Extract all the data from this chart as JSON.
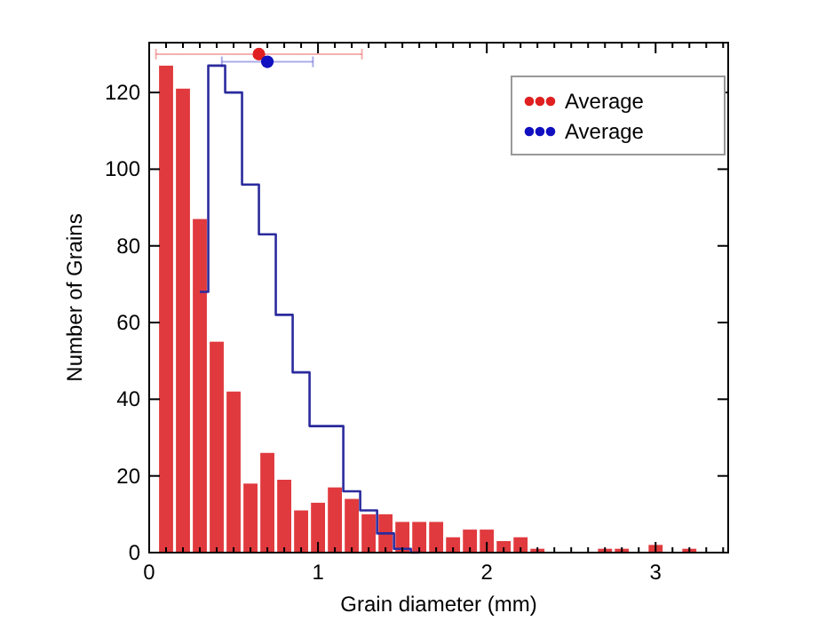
{
  "chart_data": {
    "type": "histogram",
    "xlabel": "Grain diameter (mm)",
    "ylabel": "Number of Grains",
    "bins": [
      0.05,
      0.15,
      0.25,
      0.35,
      0.45,
      0.55,
      0.65,
      0.75,
      0.85,
      0.95,
      1.05,
      1.15,
      1.25,
      1.35,
      1.45,
      1.55,
      1.65,
      1.75,
      1.85,
      1.95,
      2.05,
      2.15,
      2.25,
      2.35,
      2.45,
      2.55,
      2.65,
      2.75,
      2.85,
      2.95,
      3.05,
      3.15,
      3.25,
      3.35
    ],
    "values": [
      127,
      121,
      87,
      55,
      42,
      18,
      26,
      19,
      11,
      13,
      17,
      14,
      10,
      10,
      8,
      8,
      8,
      4,
      6,
      6,
      3,
      4,
      1,
      0,
      0,
      0,
      1,
      1,
      0,
      2,
      0,
      1,
      0
    ],
    "color": "#e03a3e",
    "series": [
      {
        "type": "step",
        "color": "#2b2b9e",
        "x": [
          0.3,
          0.4,
          0.5,
          0.6,
          0.7,
          0.8,
          0.9,
          1.0,
          1.1,
          1.2,
          1.3,
          1.4,
          1.5,
          1.6
        ],
        "values": [
          68,
          127,
          120,
          96,
          83,
          62,
          47,
          33,
          33,
          16,
          11,
          5,
          1,
          0
        ]
      },
      {
        "type": "scatter",
        "name": "Average",
        "marker": "circle",
        "color": "#e02020",
        "x": [
          0.65
        ],
        "values": [
          130
        ],
        "xerrors": [
          0.61
        ]
      },
      {
        "type": "scatter",
        "name": "Average",
        "marker": "circle",
        "color": "#1010c0",
        "x": [
          0.7
        ],
        "values": [
          128
        ],
        "xerrors": [
          0.27
        ]
      }
    ],
    "legend": "top right",
    "xlim": [
      0,
      3.43
    ],
    "ylim": [
      0,
      133
    ],
    "xticks": [
      0,
      {
        "value": 0.1,
        "label": null
      },
      {
        "value": 0.2,
        "label": null
      },
      {
        "value": 0.3,
        "label": null
      },
      {
        "value": 0.4,
        "label": null
      },
      {
        "value": 0.5,
        "label": null
      },
      {
        "value": 0.6,
        "label": null
      },
      {
        "value": 0.7,
        "label": null
      },
      {
        "value": 0.8,
        "label": null
      },
      {
        "value": 0.9,
        "label": null
      },
      1,
      {
        "value": 1.1,
        "label": null
      },
      {
        "value": 1.2,
        "label": null
      },
      {
        "value": 1.3,
        "label": null
      },
      {
        "value": 1.4,
        "label": null
      },
      {
        "value": 1.5,
        "label": null
      },
      {
        "value": 1.6,
        "label": null
      },
      {
        "value": 1.7,
        "label": null
      },
      {
        "value": 1.8,
        "label": null
      },
      {
        "value": 1.9,
        "label": null
      },
      2,
      {
        "value": 2.1,
        "label": null
      },
      {
        "value": 2.2,
        "label": null
      },
      {
        "value": 2.3,
        "label": null
      },
      {
        "value": 2.4,
        "label": null
      },
      {
        "value": 2.5,
        "label": null
      },
      {
        "value": 2.6,
        "label": null
      },
      {
        "value": 2.7,
        "label": null
      },
      {
        "value": 2.8,
        "label": null
      },
      {
        "value": 2.9,
        "label": null
      },
      3,
      {
        "value": 3.1,
        "label": null
      },
      {
        "value": 3.2,
        "label": null
      },
      {
        "value": 3.3,
        "label": null
      },
      {
        "value": 3.4,
        "label": null
      }
    ],
    "yticks": [
      0,
      20,
      40,
      60,
      80,
      100,
      120
    ],
    "grid": false
  }
}
